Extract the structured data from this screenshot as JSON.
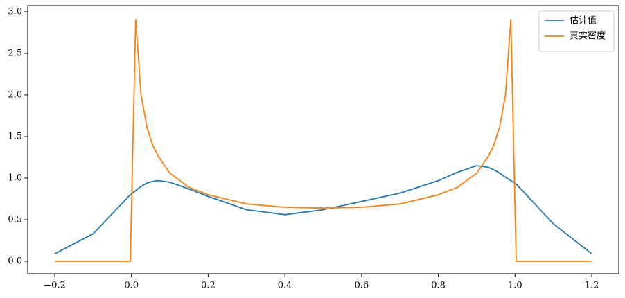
{
  "chart_data": {
    "type": "line",
    "x": [
      -0.2,
      -0.1,
      -0.003,
      0.011,
      0.025,
      0.04,
      0.055,
      0.07,
      0.1,
      0.15,
      0.2,
      0.3,
      0.4,
      0.5,
      0.6,
      0.7,
      0.8,
      0.85,
      0.9,
      0.93,
      0.945,
      0.96,
      0.975,
      0.989,
      1.003,
      1.1,
      1.2
    ],
    "series": [
      {
        "name": "估计值",
        "color": "#1f77b4",
        "values": [
          0.09,
          0.33,
          0.8,
          0.85,
          0.9,
          0.94,
          0.96,
          0.97,
          0.95,
          0.87,
          0.78,
          0.62,
          0.56,
          0.62,
          0.72,
          0.82,
          0.97,
          1.07,
          1.15,
          1.13,
          1.1,
          1.06,
          1.01,
          0.97,
          0.93,
          0.45,
          0.09
        ]
      },
      {
        "name": "真实密度",
        "color": "#ff7f0e",
        "values": [
          0,
          0,
          0,
          2.91,
          2.0,
          1.62,
          1.4,
          1.26,
          1.06,
          0.89,
          0.8,
          0.69,
          0.65,
          0.64,
          0.65,
          0.69,
          0.8,
          0.89,
          1.06,
          1.26,
          1.4,
          1.62,
          2.0,
          2.91,
          0,
          0,
          0
        ]
      }
    ],
    "xlim": [
      -0.2704,
      1.2704
    ],
    "ylim": [
      -0.15,
      3.075
    ],
    "xticks": [
      {
        "value": -0.2,
        "label": "−0.2"
      },
      {
        "value": 0,
        "label": "0.0"
      },
      0.2,
      0.4,
      0.6,
      0.8,
      {
        "value": 1,
        "label": "1.0"
      },
      1.2
    ],
    "yticks": [
      {
        "value": 0,
        "label": "0.0"
      },
      0.5,
      {
        "value": 1,
        "label": "1.0"
      },
      1.5,
      {
        "value": 2,
        "label": "2.0"
      },
      2.5,
      {
        "value": 3,
        "label": "3.0"
      }
    ],
    "grid": false,
    "legend": "upper right"
  }
}
